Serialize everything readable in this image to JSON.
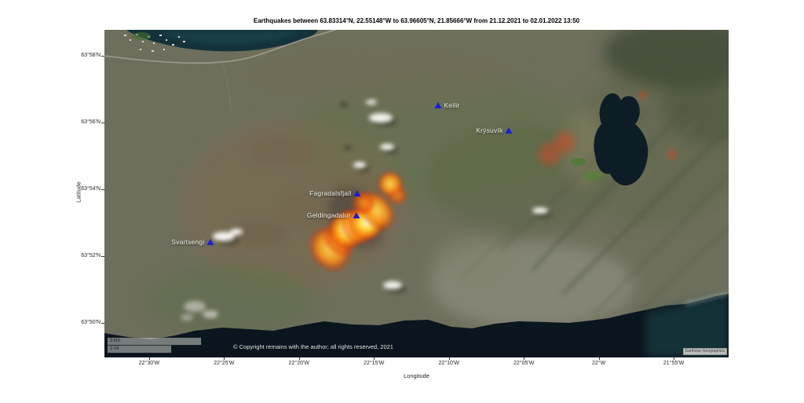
{
  "title": "Earthquakes between 63.83314°N, 22.55148°W to 63.96605°N, 21.85666°W from 21.12.2021 to 02.01.2022 13:50",
  "axes": {
    "x_label": "Longitude",
    "y_label": "Latitude",
    "x_ticks": [
      "22°30'W",
      "22°25'W",
      "22°20'W",
      "22°15'W",
      "22°10'W",
      "22°05'W",
      "22°W",
      "21°55'W"
    ],
    "y_ticks": [
      "63°58'N",
      "63°56'N",
      "63°54'N",
      "63°52'N",
      "63°50'N"
    ]
  },
  "map": {
    "extent": {
      "west": -22.5497,
      "east": -21.8556,
      "north": 63.9797,
      "south": 63.816
    },
    "markers": [
      {
        "label": "Keilir",
        "lat": 63.942,
        "lon": -22.1787,
        "label_side": "right"
      },
      {
        "label": "Krýsuvík",
        "lat": 63.9294,
        "lon": -22.1001,
        "label_side": "left"
      },
      {
        "label": "Fagradalsfjall",
        "lat": 63.898,
        "lon": -22.2686,
        "label_side": "left"
      },
      {
        "label": "Geldingadalur",
        "lat": 63.887,
        "lon": -22.2695,
        "label_side": "left"
      },
      {
        "label": "Svartsengi",
        "lat": 63.8737,
        "lon": -22.4319,
        "label_side": "left"
      }
    ],
    "hotspots": [
      {
        "lat": 63.8702,
        "lon": -22.2992,
        "d": 64,
        "level": 2,
        "rot": -40,
        "sy": 1.2
      },
      {
        "lat": 63.8749,
        "lon": -22.2887,
        "d": 52,
        "level": 1,
        "rot": -40,
        "sy": 1.2
      },
      {
        "lat": 63.88,
        "lon": -22.2791,
        "d": 58,
        "level": 3,
        "rot": 0,
        "sy": 1
      },
      {
        "lat": 63.8815,
        "lon": -22.2686,
        "d": 50,
        "level": 2,
        "rot": -35,
        "sy": 1.25
      },
      {
        "lat": 63.8835,
        "lon": -22.258,
        "d": 54,
        "level": 3,
        "rot": 0,
        "sy": 1
      },
      {
        "lat": 63.8894,
        "lon": -22.2468,
        "d": 50,
        "level": 2,
        "rot": -38,
        "sy": 1.4
      },
      {
        "lat": 63.8933,
        "lon": -22.2616,
        "d": 40,
        "level": 1,
        "rot": 0,
        "sy": 1
      },
      {
        "lat": 63.8976,
        "lon": -22.225,
        "d": 34,
        "level": 1,
        "rot": -38,
        "sy": 1.2
      },
      {
        "lat": 63.9027,
        "lon": -22.232,
        "d": 42,
        "level": 2,
        "rot": 0,
        "sy": 1
      },
      {
        "lat": 63.9177,
        "lon": -22.0547,
        "d": 50,
        "level": 0,
        "rot": 0,
        "sy": 1
      },
      {
        "lat": 63.9235,
        "lon": -22.0381,
        "d": 46,
        "level": 0,
        "rot": 0,
        "sy": 1
      },
      {
        "lat": 63.9471,
        "lon": -21.9508,
        "d": 18,
        "level": 0,
        "rot": 0,
        "sy": 1
      },
      {
        "lat": 63.9173,
        "lon": -21.9185,
        "d": 22,
        "level": 0,
        "rot": 0,
        "sy": 1
      }
    ],
    "scale_bar": {
      "top_label": "5 km",
      "bottom_label": "2 mi"
    },
    "copyright": "© Copyright remains with the author; all rights reserved, 2021",
    "attribution": "Earthstar Geographics"
  },
  "colors": {
    "marker_blue": "#1b1bd8",
    "heat_core": "#fffce0",
    "heat_mid": "#ff8c14",
    "heat_outer": "#d23c0a",
    "ocean": "#0b151d",
    "land": "#6e6e5c"
  }
}
